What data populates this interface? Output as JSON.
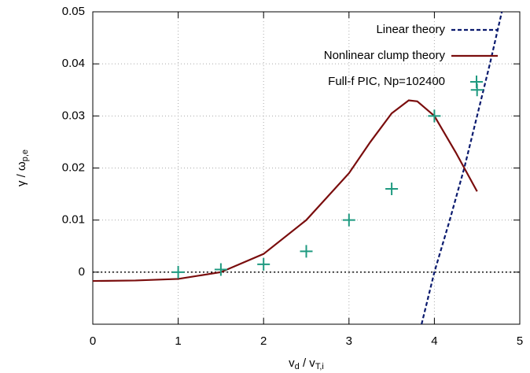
{
  "chart_data": {
    "type": "line",
    "xlabel": [
      {
        "text": "v",
        "sub": false
      },
      {
        "text": "d",
        "sub": true
      },
      {
        "text": " / v",
        "sub": false
      },
      {
        "text": "T,i",
        "sub": true
      }
    ],
    "ylabel": [
      {
        "text": "γ / ω",
        "sub": false
      },
      {
        "text": "p,e",
        "sub": true
      }
    ],
    "xlim": [
      0,
      5
    ],
    "ylim": [
      -0.01,
      0.05
    ],
    "xticks": [
      0,
      1,
      2,
      3,
      4,
      5
    ],
    "yticks": [
      0,
      0.01,
      0.02,
      0.03,
      0.04,
      0.05
    ],
    "grid": true,
    "legend": "top-right",
    "zero_line": true,
    "series": [
      {
        "name": "Linear theory",
        "color": "#0a1a6e",
        "style": "dashed",
        "x": [
          3.85,
          4.0,
          4.18,
          4.35,
          4.5,
          4.65,
          4.79
        ],
        "values": [
          -0.01,
          0,
          0.01,
          0.02,
          0.03,
          0.04,
          0.05
        ]
      },
      {
        "name": "Nonlinear clump theory",
        "color": "#7a0d0d",
        "style": "solid",
        "x": [
          0,
          0.5,
          1,
          1.5,
          2,
          2.5,
          3,
          3.25,
          3.5,
          3.7,
          3.8,
          4,
          4.25,
          4.5
        ],
        "values": [
          -0.0017,
          -0.0016,
          -0.0013,
          0.0,
          0.0035,
          0.01,
          0.019,
          0.025,
          0.0305,
          0.033,
          0.0328,
          0.03,
          0.023,
          0.0155
        ]
      },
      {
        "name": "Full-f PIC, Np=102400",
        "color": "#1f9a80",
        "style": "points",
        "x": [
          1,
          1.5,
          2,
          2.5,
          3,
          3.5,
          4,
          4.5
        ],
        "values": [
          0,
          0.0005,
          0.0015,
          0.004,
          0.01,
          0.016,
          0.03,
          0.035
        ]
      }
    ]
  }
}
